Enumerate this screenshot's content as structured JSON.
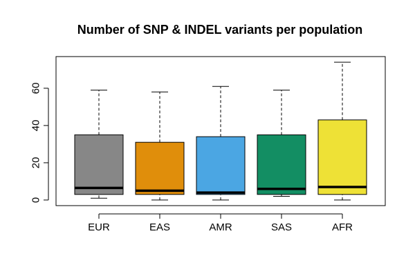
{
  "chart_data": {
    "type": "boxplot",
    "title": "Number of SNP & INDEL variants per population",
    "xlabel": "",
    "ylabel": "",
    "ylim": [
      -3,
      77
    ],
    "yticks": [
      0,
      20,
      40,
      60
    ],
    "grid": false,
    "legend": "none",
    "categories": [
      "EUR",
      "EAS",
      "AMR",
      "SAS",
      "AFR"
    ],
    "boxes": [
      {
        "category": "EUR",
        "min": 1,
        "q1": 3,
        "median": 6.5,
        "q3": 35,
        "max": 59,
        "color": "#878787"
      },
      {
        "category": "EAS",
        "min": 0,
        "q1": 3,
        "median": 5,
        "q3": 31,
        "max": 58,
        "color": "#E08E0B"
      },
      {
        "category": "AMR",
        "min": 0,
        "q1": 3,
        "median": 4,
        "q3": 34,
        "max": 61,
        "color": "#4BA6E3"
      },
      {
        "category": "SAS",
        "min": 2,
        "q1": 3,
        "median": 6,
        "q3": 35,
        "max": 59,
        "color": "#138E63"
      },
      {
        "category": "AFR",
        "min": 0,
        "q1": 3,
        "median": 7,
        "q3": 43,
        "max": 74,
        "color": "#EEE136"
      }
    ]
  }
}
